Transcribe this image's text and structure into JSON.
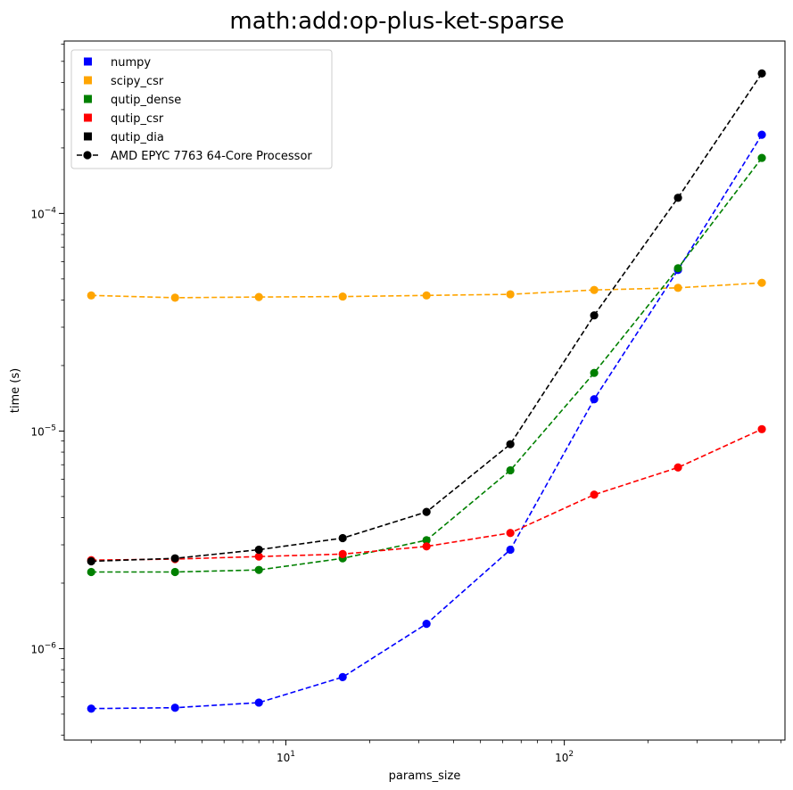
{
  "chart_data": {
    "type": "line",
    "title": "math:add:op-plus-ket-sparse",
    "xlabel": "params_size",
    "ylabel": "time (s)",
    "xscale": "log",
    "yscale": "log",
    "xlim": [
      1.6,
      620
    ],
    "ylim": [
      3.8e-07,
      0.00062
    ],
    "x": [
      2,
      4,
      8,
      16,
      32,
      64,
      128,
      256,
      512
    ],
    "x_tick_labels": [
      {
        "value": 10,
        "base": "10",
        "exp": "1"
      },
      {
        "value": 100,
        "base": "10",
        "exp": "2"
      }
    ],
    "y_tick_labels": [
      {
        "value": 1e-06,
        "base": "10",
        "exp": "−6"
      },
      {
        "value": 1e-05,
        "base": "10",
        "exp": "−5"
      },
      {
        "value": 0.0001,
        "base": "10",
        "exp": "−4"
      }
    ],
    "grid": false,
    "legend_position": "top-left",
    "series": [
      {
        "name": "numpy",
        "color": "#0000ff",
        "values": [
          5.3e-07,
          5.35e-07,
          5.65e-07,
          7.4e-07,
          1.3e-06,
          2.85e-06,
          1.4e-05,
          5.5e-05,
          0.00023
        ]
      },
      {
        "name": "scipy_csr",
        "color": "#ffa500",
        "values": [
          4.2e-05,
          4.1e-05,
          4.13e-05,
          4.15e-05,
          4.2e-05,
          4.25e-05,
          4.45e-05,
          4.55e-05,
          4.8e-05
        ]
      },
      {
        "name": "qutip_dense",
        "color": "#008000",
        "values": [
          2.25e-06,
          2.25e-06,
          2.3e-06,
          2.6e-06,
          3.15e-06,
          6.6e-06,
          1.85e-05,
          5.6e-05,
          0.00018
        ]
      },
      {
        "name": "qutip_csr",
        "color": "#ff0000",
        "values": [
          2.55e-06,
          2.58e-06,
          2.65e-06,
          2.72e-06,
          2.95e-06,
          3.4e-06,
          5.1e-06,
          6.8e-06,
          1.02e-05
        ]
      },
      {
        "name": "qutip_dia",
        "color": "#000000",
        "values": [
          2.52e-06,
          2.6e-06,
          2.85e-06,
          3.22e-06,
          4.25e-06,
          8.7e-06,
          3.4e-05,
          0.000118,
          0.00044
        ]
      }
    ],
    "legend": [
      {
        "label": "numpy",
        "color": "#0000ff",
        "marker": "square"
      },
      {
        "label": "scipy_csr",
        "color": "#ffa500",
        "marker": "square"
      },
      {
        "label": "qutip_dense",
        "color": "#008000",
        "marker": "square"
      },
      {
        "label": "qutip_csr",
        "color": "#ff0000",
        "marker": "square"
      },
      {
        "label": "qutip_dia",
        "color": "#000000",
        "marker": "square"
      },
      {
        "label": "AMD EPYC 7763 64-Core Processor",
        "color": "#000000",
        "marker": "line-dot"
      }
    ]
  }
}
